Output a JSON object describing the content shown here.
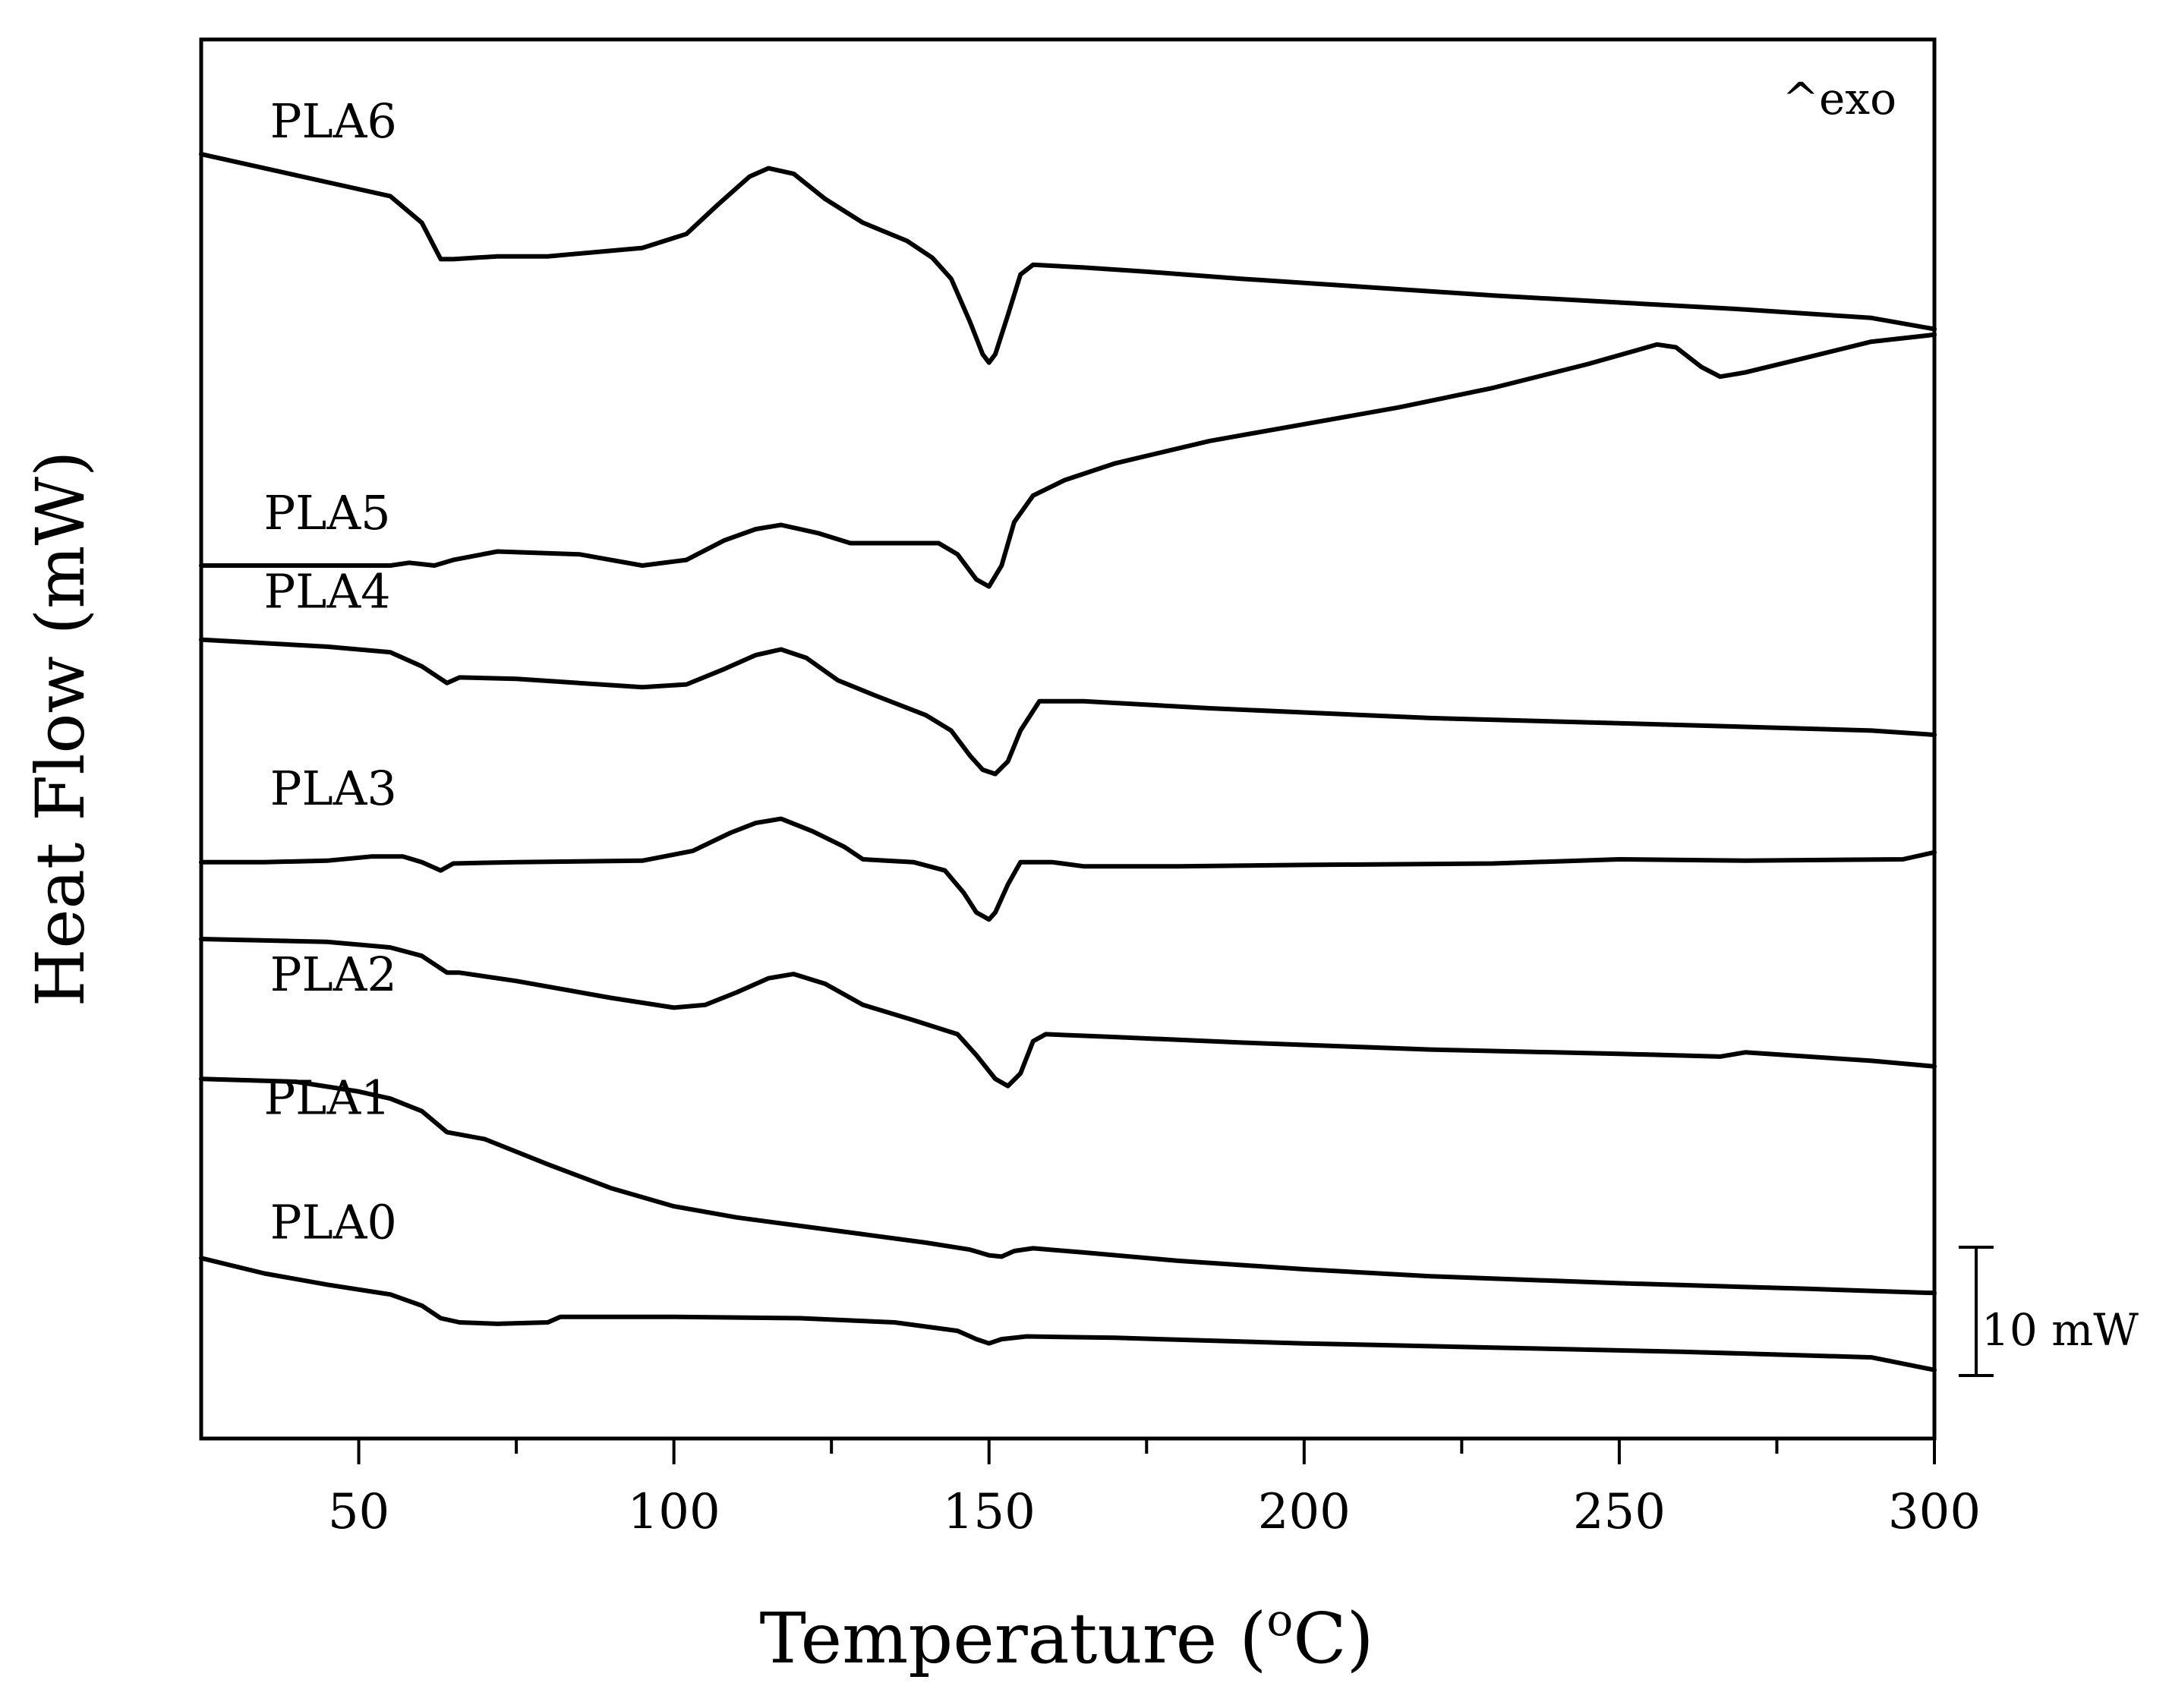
{
  "chart_data": {
    "type": "line",
    "title": "",
    "xlabel": "Temperature (",
    "xlabel_sup": "o",
    "xlabel_tail": "C)",
    "ylabel": "Heat Flow (mW)",
    "xlim": [
      25,
      300
    ],
    "ylim": [
      0,
      100
    ],
    "x_ticks": [
      50,
      100,
      150,
      200,
      250,
      300
    ],
    "x_minor_ticks": [
      75,
      125,
      175,
      225,
      275
    ],
    "y_ticks_shown": false,
    "annotation": "^exo",
    "scale_bar": {
      "label": "10 mW",
      "value_mW": 10
    },
    "series": [
      {
        "name": "PLA6",
        "points": [
          [
            25,
            91.8
          ],
          [
            45,
            89.8
          ],
          [
            55,
            88.8
          ],
          [
            60,
            86.9
          ],
          [
            63,
            84.3
          ],
          [
            65,
            84.3
          ],
          [
            72,
            84.5
          ],
          [
            80,
            84.5
          ],
          [
            95,
            85.1
          ],
          [
            102,
            86.1
          ],
          [
            107,
            88.2
          ],
          [
            112,
            90.2
          ],
          [
            115,
            90.8
          ],
          [
            119,
            90.4
          ],
          [
            124,
            88.6
          ],
          [
            130,
            86.9
          ],
          [
            137,
            85.6
          ],
          [
            141,
            84.4
          ],
          [
            144,
            82.9
          ],
          [
            147,
            79.8
          ],
          [
            149,
            77.5
          ],
          [
            150,
            76.9
          ],
          [
            151,
            77.5
          ],
          [
            153,
            80.3
          ],
          [
            155,
            83.2
          ],
          [
            157,
            83.9
          ],
          [
            165,
            83.7
          ],
          [
            175,
            83.4
          ],
          [
            190,
            82.9
          ],
          [
            210,
            82.3
          ],
          [
            230,
            81.7
          ],
          [
            250,
            81.2
          ],
          [
            270,
            80.7
          ],
          [
            290,
            80.1
          ],
          [
            300,
            79.3
          ]
        ]
      },
      {
        "name": "PLA5",
        "points": [
          [
            25,
            62.4
          ],
          [
            55,
            62.4
          ],
          [
            58,
            62.6
          ],
          [
            62,
            62.4
          ],
          [
            65,
            62.8
          ],
          [
            72,
            63.4
          ],
          [
            85,
            63.2
          ],
          [
            95,
            62.4
          ],
          [
            102,
            62.8
          ],
          [
            108,
            64.2
          ],
          [
            113,
            65.0
          ],
          [
            117,
            65.3
          ],
          [
            123,
            64.7
          ],
          [
            128,
            64.0
          ],
          [
            135,
            64.0
          ],
          [
            142,
            64.0
          ],
          [
            145,
            63.2
          ],
          [
            148,
            61.4
          ],
          [
            150,
            60.9
          ],
          [
            152,
            62.4
          ],
          [
            154,
            65.5
          ],
          [
            157,
            67.4
          ],
          [
            162,
            68.5
          ],
          [
            170,
            69.7
          ],
          [
            185,
            71.3
          ],
          [
            200,
            72.5
          ],
          [
            215,
            73.7
          ],
          [
            230,
            75.1
          ],
          [
            245,
            76.8
          ],
          [
            256,
            78.2
          ],
          [
            259,
            78.0
          ],
          [
            263,
            76.6
          ],
          [
            266,
            75.9
          ],
          [
            270,
            76.2
          ],
          [
            280,
            77.3
          ],
          [
            290,
            78.4
          ],
          [
            300,
            78.9
          ]
        ]
      },
      {
        "name": "PLA4",
        "points": [
          [
            25,
            57.1
          ],
          [
            45,
            56.6
          ],
          [
            55,
            56.2
          ],
          [
            60,
            55.2
          ],
          [
            64,
            54.0
          ],
          [
            66,
            54.4
          ],
          [
            75,
            54.3
          ],
          [
            95,
            53.7
          ],
          [
            102,
            53.9
          ],
          [
            108,
            55.0
          ],
          [
            113,
            56.0
          ],
          [
            117,
            56.4
          ],
          [
            121,
            55.8
          ],
          [
            126,
            54.2
          ],
          [
            132,
            53.1
          ],
          [
            140,
            51.7
          ],
          [
            144,
            50.6
          ],
          [
            147,
            48.8
          ],
          [
            149,
            47.8
          ],
          [
            151,
            47.5
          ],
          [
            153,
            48.4
          ],
          [
            155,
            50.6
          ],
          [
            158,
            52.7
          ],
          [
            165,
            52.7
          ],
          [
            185,
            52.2
          ],
          [
            220,
            51.5
          ],
          [
            260,
            51.0
          ],
          [
            290,
            50.6
          ],
          [
            300,
            50.3
          ]
        ]
      },
      {
        "name": "PLA3",
        "points": [
          [
            25,
            41.2
          ],
          [
            35,
            41.2
          ],
          [
            45,
            41.3
          ],
          [
            52,
            41.6
          ],
          [
            57,
            41.6
          ],
          [
            60,
            41.2
          ],
          [
            63,
            40.6
          ],
          [
            65,
            41.1
          ],
          [
            75,
            41.2
          ],
          [
            95,
            41.3
          ],
          [
            103,
            42.0
          ],
          [
            109,
            43.3
          ],
          [
            113,
            44.0
          ],
          [
            117,
            44.3
          ],
          [
            122,
            43.4
          ],
          [
            127,
            42.3
          ],
          [
            130,
            41.4
          ],
          [
            138,
            41.2
          ],
          [
            143,
            40.6
          ],
          [
            146,
            39.0
          ],
          [
            148,
            37.6
          ],
          [
            150,
            37.1
          ],
          [
            151,
            37.6
          ],
          [
            153,
            39.6
          ],
          [
            155,
            41.2
          ],
          [
            160,
            41.2
          ],
          [
            165,
            40.9
          ],
          [
            180,
            40.9
          ],
          [
            200,
            41.0
          ],
          [
            230,
            41.1
          ],
          [
            250,
            41.4
          ],
          [
            270,
            41.3
          ],
          [
            295,
            41.4
          ],
          [
            300,
            41.9
          ]
        ]
      },
      {
        "name": "PLA2",
        "points": [
          [
            25,
            35.7
          ],
          [
            45,
            35.5
          ],
          [
            55,
            35.1
          ],
          [
            60,
            34.5
          ],
          [
            64,
            33.3
          ],
          [
            66,
            33.3
          ],
          [
            75,
            32.7
          ],
          [
            90,
            31.5
          ],
          [
            100,
            30.8
          ],
          [
            105,
            31.0
          ],
          [
            110,
            31.9
          ],
          [
            115,
            32.9
          ],
          [
            119,
            33.2
          ],
          [
            124,
            32.5
          ],
          [
            130,
            31.0
          ],
          [
            138,
            29.9
          ],
          [
            145,
            28.9
          ],
          [
            148,
            27.4
          ],
          [
            151,
            25.7
          ],
          [
            153,
            25.2
          ],
          [
            155,
            26.1
          ],
          [
            157,
            28.4
          ],
          [
            159,
            28.9
          ],
          [
            170,
            28.7
          ],
          [
            190,
            28.3
          ],
          [
            220,
            27.8
          ],
          [
            250,
            27.5
          ],
          [
            266,
            27.3
          ],
          [
            270,
            27.6
          ],
          [
            280,
            27.3
          ],
          [
            290,
            27.0
          ],
          [
            300,
            26.6
          ]
        ]
      },
      {
        "name": "PLA1",
        "points": [
          [
            25,
            25.7
          ],
          [
            40,
            25.5
          ],
          [
            50,
            24.8
          ],
          [
            55,
            24.3
          ],
          [
            60,
            23.4
          ],
          [
            64,
            21.9
          ],
          [
            70,
            21.4
          ],
          [
            80,
            19.6
          ],
          [
            90,
            17.9
          ],
          [
            100,
            16.6
          ],
          [
            110,
            15.8
          ],
          [
            120,
            15.2
          ],
          [
            130,
            14.6
          ],
          [
            140,
            14.0
          ],
          [
            147,
            13.5
          ],
          [
            150,
            13.1
          ],
          [
            152,
            13.0
          ],
          [
            154,
            13.4
          ],
          [
            157,
            13.6
          ],
          [
            165,
            13.3
          ],
          [
            180,
            12.7
          ],
          [
            200,
            12.1
          ],
          [
            220,
            11.6
          ],
          [
            250,
            11.1
          ],
          [
            280,
            10.7
          ],
          [
            300,
            10.4
          ]
        ]
      },
      {
        "name": "PLA0",
        "points": [
          [
            25,
            12.9
          ],
          [
            35,
            11.8
          ],
          [
            45,
            11.0
          ],
          [
            55,
            10.3
          ],
          [
            60,
            9.5
          ],
          [
            63,
            8.6
          ],
          [
            66,
            8.3
          ],
          [
            72,
            8.2
          ],
          [
            80,
            8.3
          ],
          [
            82,
            8.7
          ],
          [
            85,
            8.7
          ],
          [
            100,
            8.7
          ],
          [
            120,
            8.6
          ],
          [
            135,
            8.3
          ],
          [
            145,
            7.7
          ],
          [
            148,
            7.1
          ],
          [
            150,
            6.8
          ],
          [
            152,
            7.1
          ],
          [
            156,
            7.3
          ],
          [
            170,
            7.2
          ],
          [
            200,
            6.8
          ],
          [
            230,
            6.5
          ],
          [
            260,
            6.2
          ],
          [
            290,
            5.8
          ],
          [
            300,
            4.9
          ]
        ]
      }
    ],
    "curve_labels": [
      {
        "text": "PLA6",
        "x": 46,
        "y": 93.0
      },
      {
        "text": "PLA5",
        "x": 45,
        "y": 65.0
      },
      {
        "text": "PLA4",
        "x": 45,
        "y": 59.4
      },
      {
        "text": "PLA3",
        "x": 46,
        "y": 45.3
      },
      {
        "text": "PLA2",
        "x": 46,
        "y": 32.0
      },
      {
        "text": "PLA1",
        "x": 45,
        "y": 23.2
      },
      {
        "text": "PLA0",
        "x": 46,
        "y": 14.3
      }
    ]
  }
}
